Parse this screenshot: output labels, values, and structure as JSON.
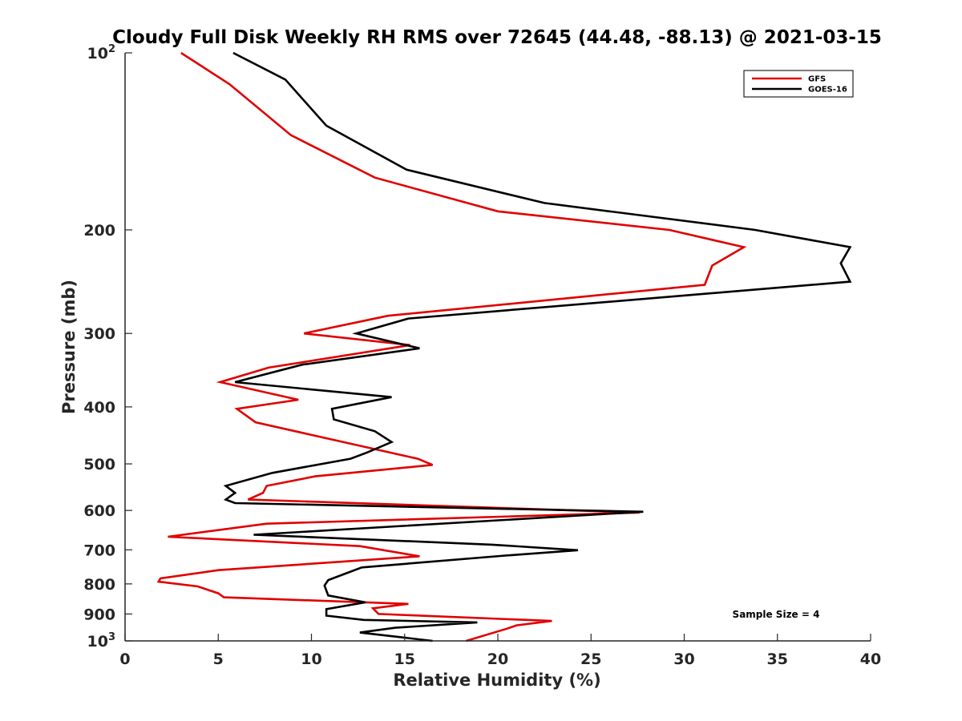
{
  "chart_data": {
    "type": "line",
    "title": "Cloudy Full Disk Weekly RH RMS over 72645 (44.48, -88.13) @ 2021-03-15",
    "xlabel": "Relative Humidity (%)",
    "ylabel": "Pressure (mb)",
    "xlim": [
      0,
      40
    ],
    "ylim": [
      100,
      1000
    ],
    "yscale": "log",
    "y_reversed": true,
    "grid": false,
    "legend_position": "top-right",
    "x_ticks": [
      "0",
      "5",
      "10",
      "15",
      "20",
      "25",
      "30",
      "35",
      "40"
    ],
    "y_ticks": [
      {
        "value": 100,
        "base": "10",
        "exp": "2",
        "label": ""
      },
      {
        "value": 200,
        "label": "200"
      },
      {
        "value": 300,
        "label": "300"
      },
      {
        "value": 400,
        "label": "400"
      },
      {
        "value": 500,
        "label": "500"
      },
      {
        "value": 600,
        "label": "600"
      },
      {
        "value": 700,
        "label": "700"
      },
      {
        "value": 800,
        "label": "800"
      },
      {
        "value": 900,
        "label": "900"
      },
      {
        "value": 1000,
        "base": "10",
        "exp": "3",
        "label": ""
      }
    ],
    "series": [
      {
        "name": "GFS",
        "color": "#e00000",
        "x": [
          3.0,
          5.6,
          8.9,
          13.4,
          20.0,
          29.2,
          33.2,
          31.5,
          31.1,
          14.1,
          9.6,
          15.3,
          7.7,
          5.1,
          9.3,
          6.0,
          7.0,
          15.7,
          16.5,
          10.2,
          7.6,
          7.4,
          6.6,
          27.6,
          7.6,
          2.3,
          12.6,
          15.8,
          5.0,
          1.9,
          1.8,
          3.9,
          5.0,
          5.3,
          15.2,
          13.3,
          13.6,
          22.9,
          21.0,
          20.5,
          18.3
        ],
        "y": [
          100,
          113,
          138,
          163,
          186,
          200,
          214,
          230,
          248,
          280,
          300,
          314,
          343,
          363,
          389,
          403,
          425,
          490,
          502,
          525,
          545,
          560,
          575,
          605,
          632,
          665,
          690,
          718,
          758,
          783,
          793,
          808,
          830,
          843,
          865,
          880,
          900,
          925,
          941,
          953,
          1000
        ]
      },
      {
        "name": "GOES-16",
        "color": "#000000",
        "x": [
          5.8,
          8.6,
          10.8,
          15.1,
          22.5,
          33.8,
          38.9,
          38.4,
          38.9,
          15.2,
          12.4,
          15.8,
          9.5,
          5.9,
          14.3,
          11.1,
          11.2,
          13.4,
          14.3,
          13.0,
          12.1,
          7.9,
          5.4,
          5.9,
          5.4,
          5.9,
          27.8,
          6.9,
          19.7,
          24.3,
          20.4,
          12.7,
          10.9,
          10.7,
          10.9,
          12.9,
          10.8,
          10.8,
          12.8,
          18.9,
          14.5,
          12.6,
          16.5
        ],
        "y": [
          100,
          111,
          133,
          158,
          180,
          200,
          214,
          228,
          245,
          283,
          300,
          318,
          339,
          363,
          385,
          403,
          420,
          440,
          459,
          478,
          490,
          518,
          545,
          560,
          575,
          583,
          603,
          660,
          686,
          701,
          716,
          750,
          788,
          805,
          837,
          860,
          883,
          906,
          921,
          930,
          950,
          968,
          1000
        ]
      }
    ],
    "annotations": [
      "Sample Size = 4"
    ]
  }
}
